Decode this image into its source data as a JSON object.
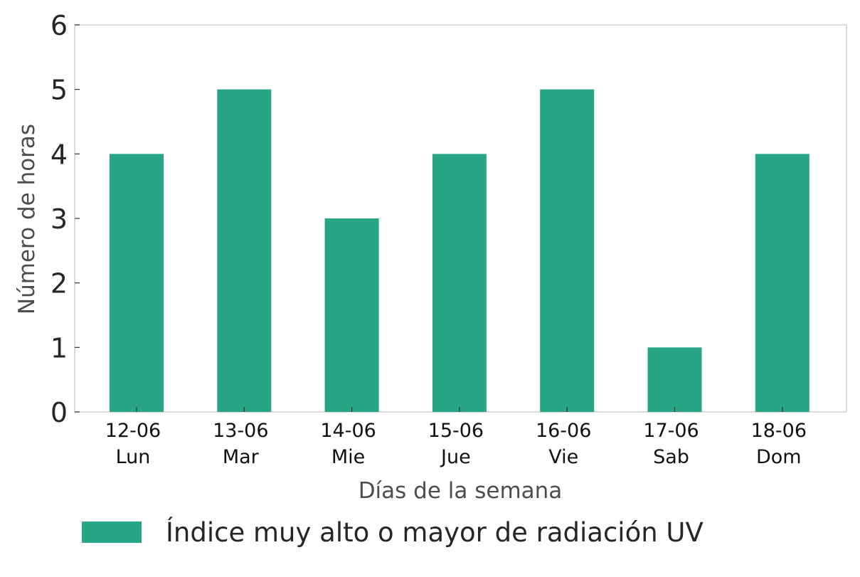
{
  "chart_data": {
    "type": "bar",
    "categories": [
      [
        "12-06",
        "Lun"
      ],
      [
        "13-06",
        "Mar"
      ],
      [
        "14-06",
        "Mie"
      ],
      [
        "15-06",
        "Jue"
      ],
      [
        "16-06",
        "Vie"
      ],
      [
        "17-06",
        "Sab"
      ],
      [
        "18-06",
        "Dom"
      ]
    ],
    "series": [
      {
        "name": "Índice muy alto o mayor de radiación UV",
        "values": [
          4,
          5,
          3,
          4,
          5,
          1,
          4
        ],
        "color": "#27a585"
      }
    ],
    "xlabel": "Días de la semana",
    "ylabel": "Número de horas",
    "ylim": [
      0,
      6
    ],
    "yticks": [
      0,
      1,
      2,
      3,
      4,
      5,
      6
    ],
    "grid": false,
    "legend": "bottom-left",
    "colors": {
      "axis": "#d0d0d0",
      "text": "#262626",
      "label": "#4d4d4d"
    }
  }
}
